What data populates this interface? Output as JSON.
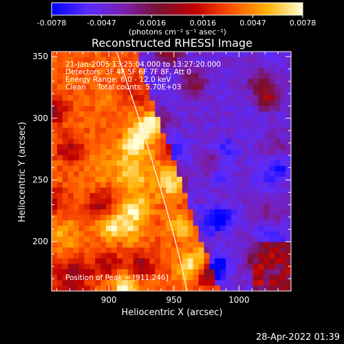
{
  "chart_data": {
    "type": "heatmap",
    "title": "Reconstructed RHESSI Image",
    "colorbar": {
      "tick_labels": [
        "-0.0078",
        "-0.0047",
        "-0.0016",
        "0.0016",
        "0.0047",
        "0.0078"
      ],
      "ticks": [
        -0.0078,
        -0.0047,
        -0.0016,
        0.0016,
        0.0047,
        0.0078
      ],
      "range": [
        -0.0078,
        0.0078
      ],
      "unit_label": "(photons cm⁻² s⁻¹ asec⁻²)",
      "colors": [
        "#0000ff",
        "#5a2cff",
        "#7a1fb0",
        "#7a1030",
        "#c00000",
        "#ff5000",
        "#ffb000",
        "#ffffd8"
      ]
    },
    "xlabel": "Heliocentric X (arcsec)",
    "ylabel": "Heliocentric Y (arcsec)",
    "xlim": [
      856,
      1040
    ],
    "ylim": [
      160,
      354
    ],
    "xticks": [
      900,
      950,
      1000
    ],
    "yticks": [
      200,
      250,
      300,
      350
    ],
    "annotations": [
      "21-Jan-2005 13:25:04.000 to 13:27:20.000",
      "Detectors: 3F 4F 5F 6F 7F 8F, Att 0",
      "Energy Range: 6.0 - 12.0 keV",
      "Clean     Total counts: 5.70E+03"
    ],
    "peak_label": "Position of Peak = [911,246]",
    "peak": [
      911,
      246
    ],
    "limb_curve": {
      "x": [
        906,
        920,
        932,
        942,
        950,
        956,
        960
      ],
      "y": [
        354,
        310,
        270,
        235,
        205,
        180,
        160
      ]
    }
  },
  "footer": {
    "date": "28-Apr-2022 01:39"
  }
}
